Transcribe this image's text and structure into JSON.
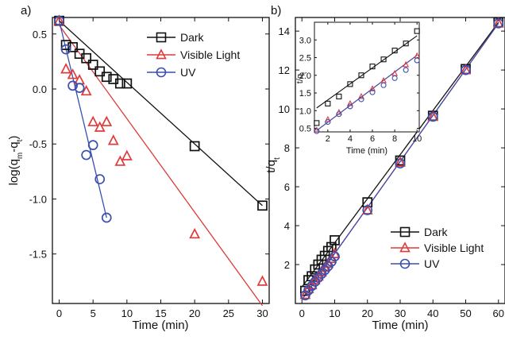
{
  "chart_data": [
    {
      "panel_label": "a)",
      "type": "scatter",
      "xlabel": "Time (min)",
      "ylabel": {
        "main": "log(q",
        "sub1": "m",
        "mid": "-q",
        "sub2": "t",
        "end": ")"
      },
      "xlim": [
        -1,
        31
      ],
      "ylim": [
        -1.95,
        0.65
      ],
      "xticks": [
        0,
        5,
        10,
        15,
        20,
        25,
        30
      ],
      "yticks": [
        0.5,
        0.0,
        -0.5,
        -1.0,
        -1.5
      ],
      "ytick_labels": [
        "0.5",
        "0.0",
        "-0.5",
        "-1.0",
        "-1.5"
      ],
      "legend_position": "top-right",
      "series": [
        {
          "name": "Dark",
          "color": "#111111",
          "marker": "square",
          "x": [
            0,
            1,
            2,
            3,
            4,
            5,
            6,
            7,
            8,
            9,
            10,
            20,
            30
          ],
          "y": [
            0.62,
            0.4,
            0.38,
            0.32,
            0.28,
            0.22,
            0.16,
            0.11,
            0.09,
            0.05,
            0.05,
            -0.52,
            -1.06
          ],
          "fit": [
            [
              0,
              0.62
            ],
            [
              30,
              -1.06
            ]
          ]
        },
        {
          "name": "Visible Light",
          "color": "#e03a3a",
          "marker": "triangle",
          "x": [
            0,
            1,
            2,
            3,
            4,
            5,
            6,
            7,
            8,
            9,
            10,
            20,
            30
          ],
          "y": [
            0.62,
            0.18,
            0.13,
            0.08,
            -0.02,
            -0.3,
            -0.35,
            -0.3,
            -0.47,
            -0.66,
            -0.61,
            -1.32,
            -1.75
          ],
          "fit": [
            [
              0,
              0.58
            ],
            [
              30,
              -1.97
            ]
          ]
        },
        {
          "name": "UV",
          "color": "#3a4fb0",
          "marker": "circle",
          "x": [
            0,
            1,
            2,
            3,
            4,
            5,
            6,
            7
          ],
          "y": [
            0.62,
            0.36,
            0.03,
            0.01,
            -0.6,
            -0.51,
            -0.82,
            -1.17
          ],
          "fit": [
            [
              0,
              0.62
            ],
            [
              7,
              -1.17
            ]
          ]
        }
      ]
    },
    {
      "panel_label": "b)",
      "type": "scatter",
      "xlabel": "Time (min)",
      "ylabel": {
        "main": "t/q",
        "sub": "t"
      },
      "xlim": [
        -2,
        62
      ],
      "ylim": [
        0,
        14.7
      ],
      "xticks": [
        0,
        10,
        20,
        30,
        40,
        50,
        60
      ],
      "yticks": [
        2,
        4,
        6,
        8,
        10,
        12,
        14
      ],
      "legend_position": "bottom-right",
      "series": [
        {
          "name": "Dark",
          "color": "#111111",
          "marker": "square",
          "x": [
            1,
            2,
            3,
            4,
            5,
            6,
            7,
            8,
            9,
            10,
            20,
            30,
            40,
            50,
            60
          ],
          "y": [
            0.65,
            1.2,
            1.4,
            1.75,
            2.0,
            2.25,
            2.45,
            2.7,
            2.9,
            3.25,
            5.2,
            7.35,
            9.65,
            12.05,
            14.45
          ],
          "fit": [
            [
              0,
              0.85
            ],
            [
              60,
              14.45
            ]
          ]
        },
        {
          "name": "Visible Light",
          "color": "#e03a3a",
          "marker": "triangle",
          "x": [
            1,
            2,
            3,
            4,
            5,
            6,
            7,
            8,
            9,
            10,
            20,
            30,
            40,
            50,
            60
          ],
          "y": [
            0.45,
            0.75,
            0.95,
            1.2,
            1.4,
            1.62,
            1.85,
            2.05,
            2.3,
            2.55,
            4.8,
            7.25,
            9.6,
            12.0,
            14.4
          ],
          "fit": [
            [
              0,
              0.2
            ],
            [
              60,
              14.4
            ]
          ]
        },
        {
          "name": "UV",
          "color": "#3a4fb0",
          "marker": "circle",
          "x": [
            1,
            2,
            3,
            4,
            5,
            6,
            7,
            8,
            9,
            10,
            20,
            30,
            40,
            50,
            60
          ],
          "y": [
            0.42,
            0.68,
            0.9,
            1.12,
            1.32,
            1.52,
            1.72,
            1.92,
            2.15,
            2.42,
            4.8,
            7.2,
            9.6,
            12.0,
            14.4
          ],
          "fit": [
            [
              0,
              0.2
            ],
            [
              60,
              14.4
            ]
          ]
        }
      ],
      "inset": {
        "xlabel": "Time (min)",
        "ylabel": {
          "main": "t/q",
          "sub": "t"
        },
        "xlim": [
          0.8,
          10.2
        ],
        "ylim": [
          0.4,
          3.5
        ],
        "xticks": [
          2,
          4,
          6,
          8,
          10
        ],
        "yticks": [
          0.5,
          1.0,
          1.5,
          2.0,
          2.5,
          3.0
        ],
        "ytick_labels": [
          "0.5",
          "1.0",
          "1.5",
          "2.0",
          "2.5",
          "3.0"
        ]
      }
    }
  ]
}
